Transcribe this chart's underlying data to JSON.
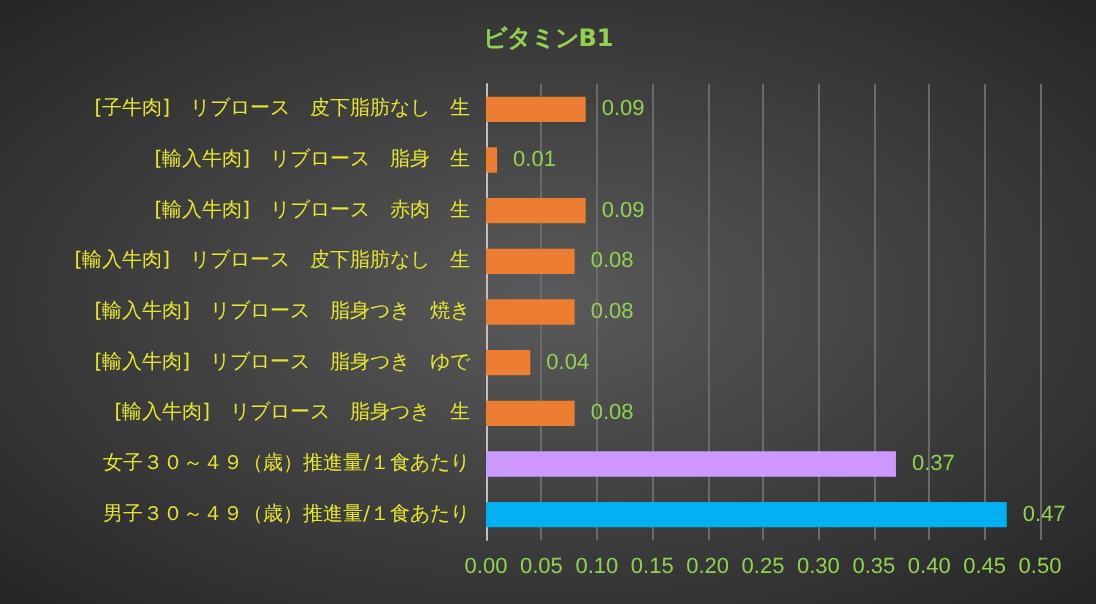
{
  "chart_data": {
    "type": "bar",
    "orientation": "horizontal",
    "title": "ビタミンB1",
    "categories": [
      "[子牛肉]　リブロース　皮下脂肪なし　生",
      "[輸入牛肉]　リブロース　脂身　生",
      "[輸入牛肉]　リブロース　赤肉　生",
      "[輸入牛肉]　リブロース　皮下脂肪なし　生",
      "[輸入牛肉]　リブロース　脂身つき　焼き",
      "[輸入牛肉]　リブロース　脂身つき　ゆで",
      "[輸入牛肉]　リブロース　脂身つき　生",
      "女子３０～４９（歳）推進量/１食あたり",
      "男子３０～４９（歳）推進量/１食あたり"
    ],
    "values": [
      0.09,
      0.01,
      0.09,
      0.08,
      0.08,
      0.04,
      0.08,
      0.37,
      0.47
    ],
    "colors": [
      "#ed7d31",
      "#ed7d31",
      "#ed7d31",
      "#ed7d31",
      "#ed7d31",
      "#ed7d31",
      "#ed7d31",
      "#cc99ff",
      "#00b0f0"
    ],
    "xlim": [
      0,
      0.5
    ],
    "xticks": [
      {
        "value": 0,
        "label": "0.00"
      },
      0.05,
      {
        "value": 0.1,
        "label": "0.10"
      },
      0.15,
      {
        "value": 0.2,
        "label": "0.20"
      },
      0.25,
      {
        "value": 0.3,
        "label": "0.30"
      },
      0.35,
      {
        "value": 0.4,
        "label": "0.40"
      },
      0.45,
      {
        "value": 0.5,
        "label": "0.50"
      }
    ],
    "grid": "x",
    "data_labels": true
  }
}
